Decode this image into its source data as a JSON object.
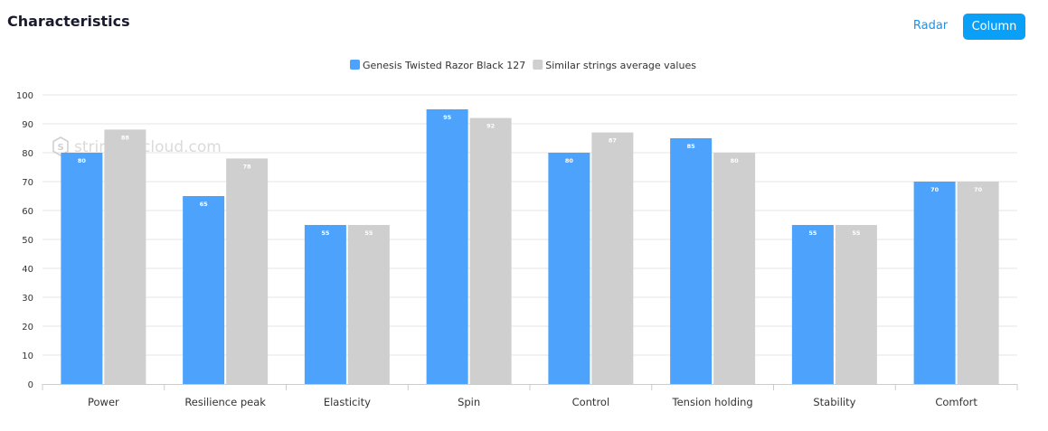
{
  "header": {
    "title": "Characteristics",
    "radar_label": "Radar",
    "column_label": "Column"
  },
  "watermark": "stringingcloud.com",
  "colors": {
    "primary": "#4da3fb",
    "secondary": "#cfcfcf",
    "accent": "#0ba0f7",
    "grid": "#e6e6e6",
    "axis": "#cccccc",
    "text": "#333333"
  },
  "chart_data": {
    "type": "bar",
    "title": "",
    "xlabel": "",
    "ylabel": "",
    "ylim": [
      0,
      100
    ],
    "yticks": [
      0,
      10,
      20,
      30,
      40,
      50,
      60,
      70,
      80,
      90,
      100
    ],
    "categories": [
      "Power",
      "Resilience peak",
      "Elasticity",
      "Spin",
      "Control",
      "Tension holding",
      "Stability",
      "Comfort"
    ],
    "series": [
      {
        "name": "Genesis Twisted Razor Black 127",
        "values": [
          80,
          65,
          55,
          95,
          80,
          85,
          55,
          70
        ]
      },
      {
        "name": "Similar strings average values",
        "values": [
          88,
          78,
          55,
          92,
          87,
          80,
          55,
          70
        ]
      }
    ],
    "legend": "top-center"
  }
}
